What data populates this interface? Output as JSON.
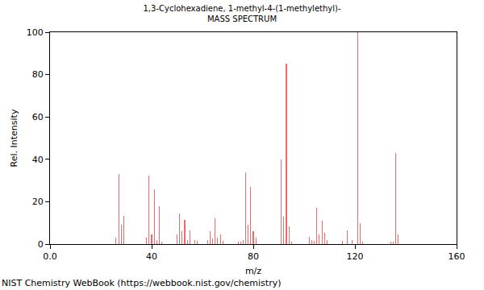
{
  "chart_data": {
    "type": "bar",
    "title": "1,3-Cyclohexadiene, 1-methyl-4-(1-methylethyl)-",
    "subtitle": "MASS SPECTRUM",
    "x_label": "m/z",
    "y_label": "Rel. Intensity",
    "annotations": [
      "NIST Chemistry WebBook (https://webbook.nist.gov/chemistry)"
    ],
    "x": [
      26,
      27,
      28,
      29,
      38,
      39,
      40,
      41,
      42,
      43,
      44,
      50,
      51,
      52,
      53,
      54,
      55,
      57,
      58,
      62,
      63,
      64,
      65,
      66,
      67,
      68,
      74,
      75,
      76,
      77,
      78,
      79,
      80,
      81,
      91,
      92,
      93,
      94,
      95,
      102,
      103,
      104,
      105,
      106,
      107,
      108,
      109,
      115,
      117,
      119,
      121,
      122,
      123,
      134,
      135,
      136,
      137
    ],
    "values": [
      3,
      33,
      9,
      13.5,
      3,
      32.5,
      4.5,
      26,
      2,
      18,
      1,
      4.5,
      14.5,
      6,
      11.5,
      2,
      6.5,
      2,
      1.5,
      2,
      6,
      2.5,
      12,
      3,
      4.5,
      1.5,
      1,
      1,
      2,
      34,
      9,
      27,
      6,
      3,
      40,
      13,
      85,
      8.5,
      1,
      3.5,
      2,
      1.5,
      17,
      4.5,
      11,
      5.5,
      2,
      1.5,
      6.5,
      2,
      100,
      10,
      1,
      1,
      1,
      43,
      4.5
    ],
    "color": "#ee6b6b",
    "xlim": [
      0,
      160
    ],
    "xticks": [
      {
        "value": 0,
        "label": "0.0"
      },
      40,
      80,
      120,
      160
    ],
    "ylim": [
      0,
      100
    ],
    "yticks": [
      0,
      20,
      40,
      60,
      80,
      100
    ],
    "grid": false
  }
}
